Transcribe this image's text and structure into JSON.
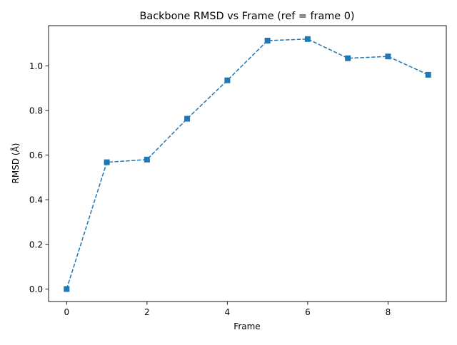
{
  "chart_data": {
    "type": "line",
    "title": "Backbone RMSD vs Frame (ref = frame 0)",
    "xlabel": "Frame",
    "ylabel": "RMSD (Å)",
    "xlim": [
      -0.45,
      9.45
    ],
    "ylim": [
      -0.056,
      1.18
    ],
    "xticks": [
      0,
      2,
      4,
      6,
      8
    ],
    "yticks": [
      0.0,
      0.2,
      0.4,
      0.6,
      0.8,
      1.0
    ],
    "xtick_labels": [
      "0",
      "2",
      "4",
      "6",
      "8"
    ],
    "ytick_labels": [
      "0.0",
      "0.2",
      "0.4",
      "0.6",
      "0.8",
      "1.0"
    ],
    "grid": false,
    "legend": "none",
    "series": [
      {
        "color": "#1f77b4",
        "line_style": "dashed",
        "marker": "square",
        "x": [
          0,
          1,
          2,
          3,
          4,
          5,
          6,
          7,
          8,
          9
        ],
        "y": [
          0.0,
          0.568,
          0.58,
          0.763,
          0.935,
          1.113,
          1.12,
          1.034,
          1.042,
          0.96
        ]
      }
    ]
  }
}
